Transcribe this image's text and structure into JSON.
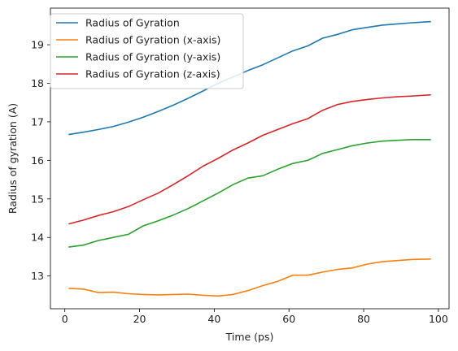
{
  "chart_data": {
    "type": "line",
    "title": "",
    "xlabel": "Time (ps)",
    "ylabel": "Radius of gyration (A)",
    "xlim": [
      -3.85,
      102.85
    ],
    "ylim": [
      12.15,
      19.95
    ],
    "xticks": [
      0,
      20,
      40,
      60,
      80,
      100
    ],
    "yticks": [
      13,
      14,
      15,
      16,
      17,
      18,
      19
    ],
    "grid": false,
    "legend_position": "upper-left",
    "x": [
      1,
      5,
      9,
      13,
      17,
      21,
      25,
      29,
      33,
      37,
      41,
      45,
      49,
      53,
      57,
      61,
      65,
      69,
      73,
      77,
      81,
      85,
      89,
      93,
      98
    ],
    "series": [
      {
        "name": "Radius of Gyration",
        "color": "#1f77b4",
        "values": [
          16.67,
          16.73,
          16.8,
          16.88,
          16.99,
          17.12,
          17.27,
          17.43,
          17.61,
          17.8,
          18.0,
          18.16,
          18.33,
          18.48,
          18.66,
          18.84,
          18.97,
          19.17,
          19.27,
          19.39,
          19.45,
          19.51,
          19.54,
          19.57,
          19.6
        ]
      },
      {
        "name": "Radius of Gyration (x-axis)",
        "color": "#ff7f0e",
        "values": [
          12.68,
          12.66,
          12.57,
          12.58,
          12.54,
          12.52,
          12.51,
          12.52,
          12.53,
          12.5,
          12.48,
          12.52,
          12.62,
          12.75,
          12.86,
          13.02,
          13.02,
          13.1,
          13.17,
          13.21,
          13.31,
          13.37,
          13.4,
          13.43,
          13.44
        ]
      },
      {
        "name": "Radius of Gyration (y-axis)",
        "color": "#2ca02c",
        "values": [
          13.75,
          13.8,
          13.92,
          14.0,
          14.08,
          14.3,
          14.43,
          14.58,
          14.75,
          14.95,
          15.15,
          15.37,
          15.54,
          15.6,
          15.77,
          15.92,
          16.0,
          16.18,
          16.28,
          16.38,
          16.45,
          16.5,
          16.52,
          16.54,
          16.54
        ]
      },
      {
        "name": "Radius of Gyration (z-axis)",
        "color": "#d62728",
        "values": [
          14.35,
          14.45,
          14.57,
          14.67,
          14.8,
          14.98,
          15.15,
          15.37,
          15.6,
          15.85,
          16.05,
          16.27,
          16.45,
          16.65,
          16.8,
          16.95,
          17.08,
          17.3,
          17.45,
          17.53,
          17.58,
          17.62,
          17.65,
          17.67,
          17.7
        ]
      }
    ]
  }
}
